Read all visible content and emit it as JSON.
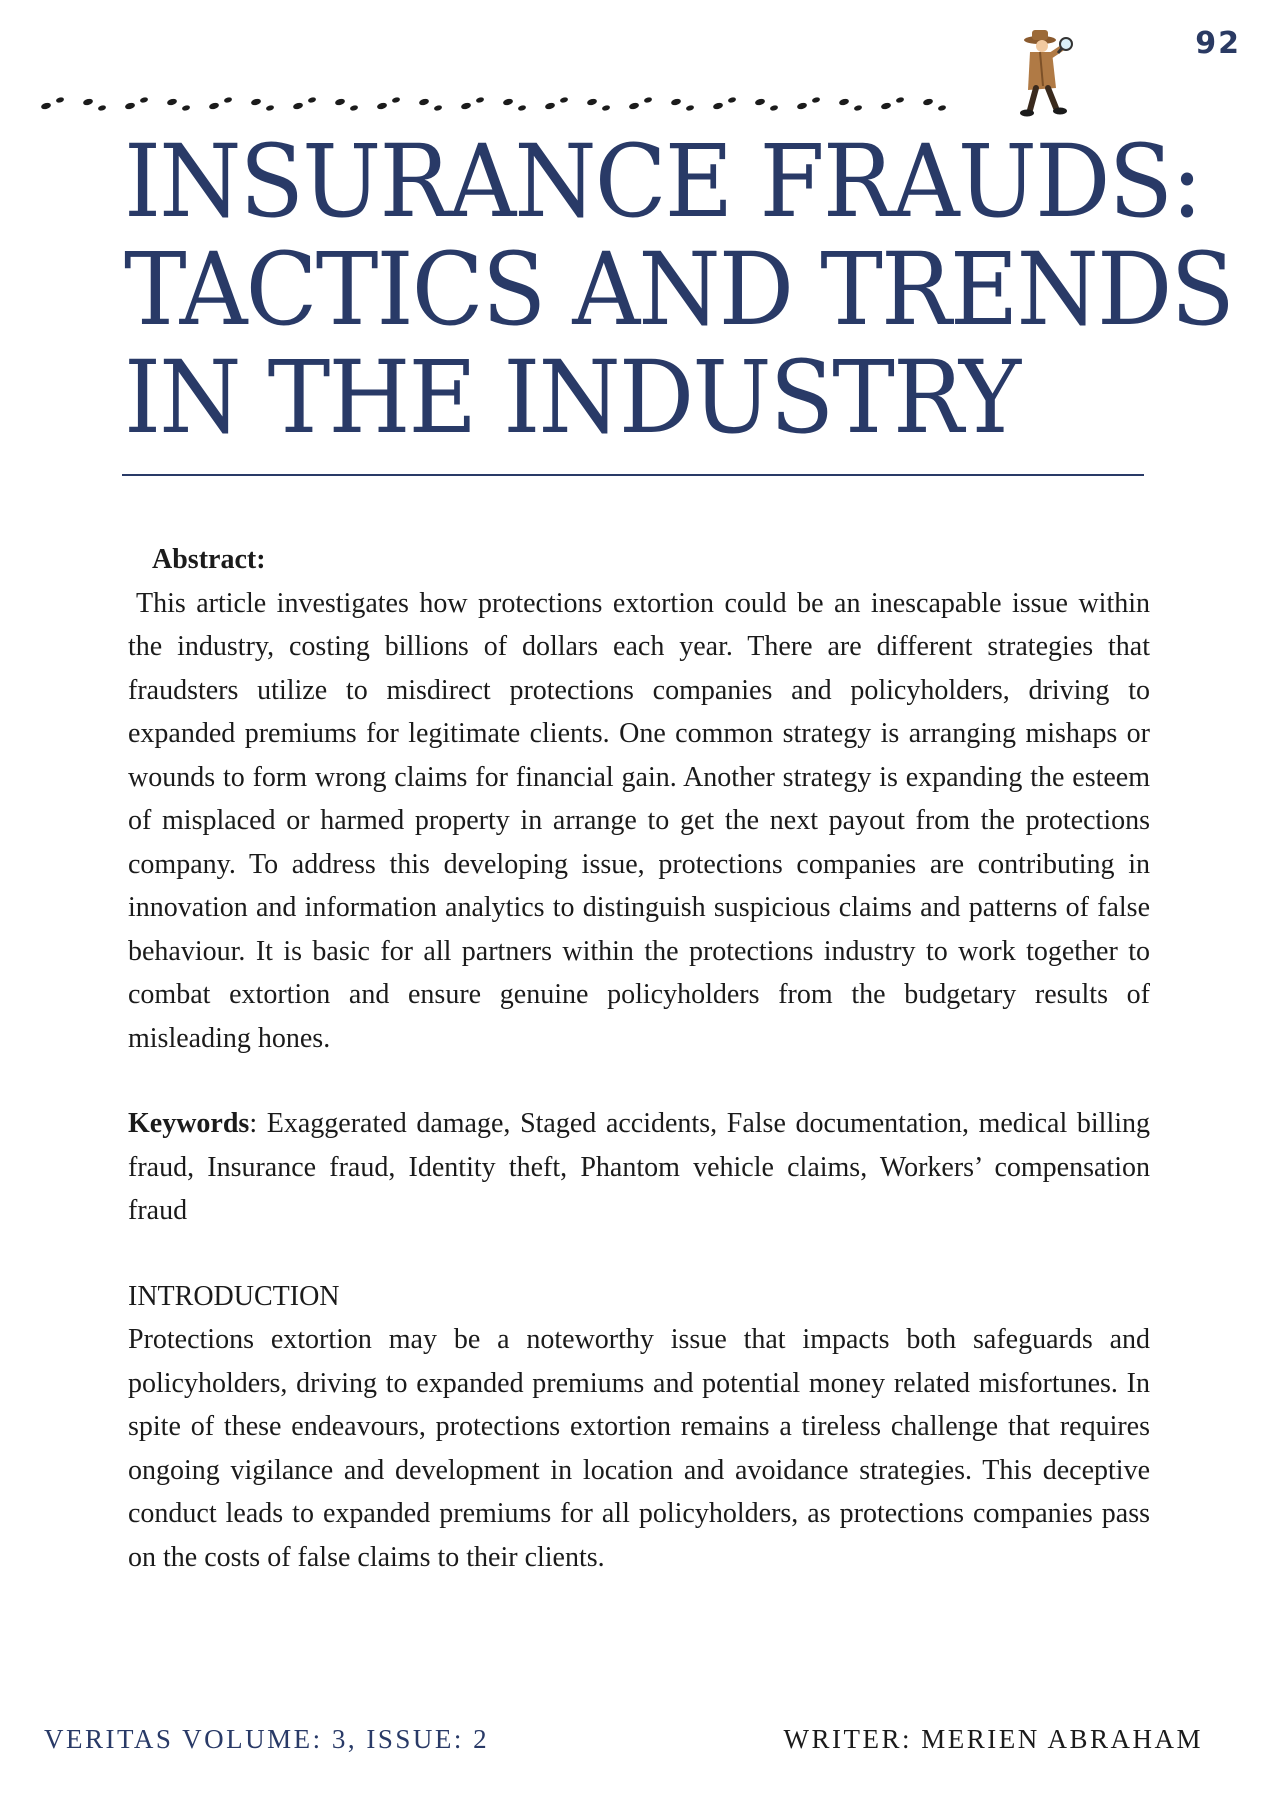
{
  "page_number": "92",
  "icons": {
    "footprints": "footprints-trail-icon",
    "detective": "detective-with-magnifier-icon"
  },
  "colors": {
    "accent": "#293a67",
    "text": "#1b1b1b",
    "detective_coat": "#b07a45"
  },
  "title": {
    "line1": "INSURANCE FRAUDS:",
    "line2": "TACTICS AND TRENDS",
    "line3": "IN THE INDUSTRY"
  },
  "abstract": {
    "label": "Abstract:",
    "body": "This article investigates how protections extortion could be an inescapable issue within the industry, costing billions of dollars each year. There are different strategies that fraudsters utilize to misdirect protections companies and policyholders, driving to expanded premiums for legitimate clients. One common strategy is arranging mishaps or wounds to form wrong claims for financial gain. Another strategy is expanding the esteem of misplaced or harmed property in arrange to get the next payout from the protections company. To address this developing issue, protections companies are contributing in innovation and information analytics to distinguish suspicious claims and patterns of false behaviour. It is basic for all partners within the protections industry to work together to combat extortion and ensure genuine policyholders from the budgetary results of misleading hones."
  },
  "keywords": {
    "label": "Keywords",
    "text": ": Exaggerated damage, Staged accidents, False documentation, medical billing fraud, Insurance fraud, Identity theft, Phantom vehicle claims, Workers’ compensation fraud"
  },
  "introduction": {
    "heading": "INTRODUCTION",
    "body": "Protections extortion may be a noteworthy issue that impacts both safeguards and policyholders, driving to expanded premiums and potential money related misfortunes. In spite of these endeavours, protections extortion remains a tireless challenge that requires ongoing vigilance and development in location and avoidance strategies. This deceptive conduct leads to expanded premiums for all policyholders, as protections companies pass on the costs of false claims to their clients."
  },
  "footer": {
    "left": "VERITAS VOLUME: 3, ISSUE: 2",
    "right": "WRITER: MERIEN ABRAHAM"
  }
}
